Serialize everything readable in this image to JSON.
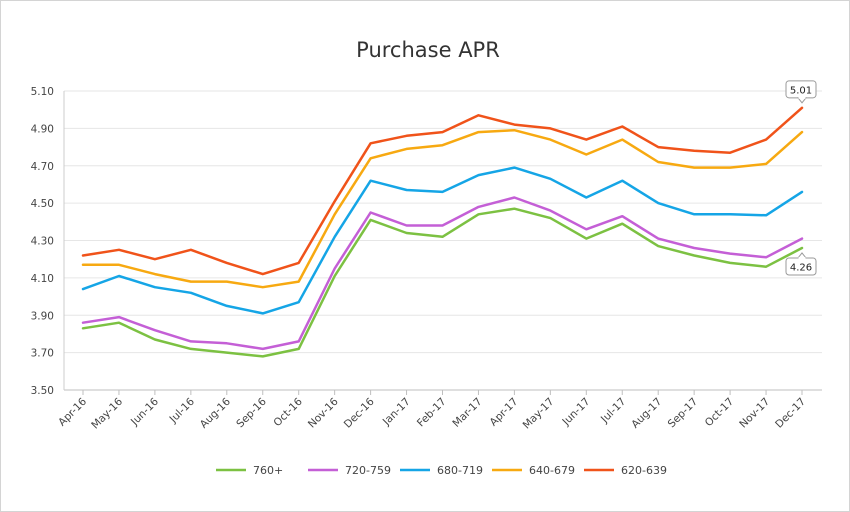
{
  "chart_data": {
    "type": "line",
    "title": "Purchase APR",
    "xlabel": "",
    "ylabel": "",
    "categories": [
      "Apr-16",
      "May-16",
      "Jun-16",
      "Jul-16",
      "Aug-16",
      "Sep-16",
      "Oct-16",
      "Nov-16",
      "Dec-16",
      "Jan-17",
      "Feb-17",
      "Mar-17",
      "Apr-17",
      "May-17",
      "Jun-17",
      "Jul-17",
      "Aug-17",
      "Sep-17",
      "Oct-17",
      "Nov-17",
      "Dec-17"
    ],
    "yticks": [
      "3.50",
      "3.70",
      "3.90",
      "4.10",
      "4.30",
      "4.50",
      "4.70",
      "4.90",
      "5.10"
    ],
    "ylim": [
      3.5,
      5.1
    ],
    "grid": "horizontal",
    "legend_position": "bottom",
    "series": [
      {
        "name": "760+",
        "color": "#7cc142",
        "values": [
          3.83,
          3.86,
          3.77,
          3.72,
          3.7,
          3.68,
          3.72,
          4.11,
          4.41,
          4.34,
          4.32,
          4.44,
          4.47,
          4.42,
          4.31,
          4.39,
          4.27,
          4.22,
          4.18,
          4.16,
          4.26
        ]
      },
      {
        "name": "720-759",
        "color": "#c45fd6",
        "values": [
          3.86,
          3.89,
          3.82,
          3.76,
          3.75,
          3.72,
          3.76,
          4.15,
          4.45,
          4.38,
          4.38,
          4.48,
          4.53,
          4.46,
          4.36,
          4.43,
          4.31,
          4.26,
          4.23,
          4.21,
          4.31
        ]
      },
      {
        "name": "680-719",
        "color": "#15a5e6",
        "values": [
          4.04,
          4.11,
          4.05,
          4.02,
          3.95,
          3.91,
          3.97,
          4.32,
          4.62,
          4.57,
          4.56,
          4.65,
          4.69,
          4.63,
          4.53,
          4.62,
          4.5,
          4.44,
          4.44,
          4.435,
          4.56
        ]
      },
      {
        "name": "640-679",
        "color": "#f7a911",
        "values": [
          4.17,
          4.17,
          4.12,
          4.08,
          4.08,
          4.05,
          4.08,
          4.44,
          4.74,
          4.79,
          4.81,
          4.88,
          4.89,
          4.84,
          4.76,
          4.84,
          4.72,
          4.69,
          4.69,
          4.71,
          4.88
        ]
      },
      {
        "name": "620-639",
        "color": "#f0531a",
        "values": [
          4.22,
          4.25,
          4.2,
          4.25,
          4.18,
          4.12,
          4.18,
          4.51,
          4.82,
          4.86,
          4.88,
          4.97,
          4.92,
          4.9,
          4.84,
          4.91,
          4.8,
          4.78,
          4.77,
          4.84,
          5.01
        ]
      }
    ],
    "data_labels": [
      {
        "series": "620-639",
        "index": 20,
        "text": "5.01"
      },
      {
        "series": "760+",
        "index": 20,
        "text": "4.26"
      }
    ]
  }
}
